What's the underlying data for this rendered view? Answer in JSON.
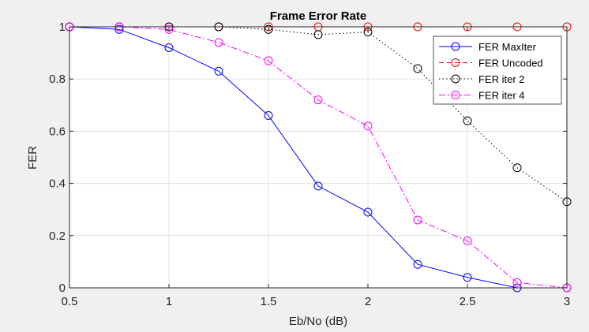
{
  "chart_data": {
    "type": "line",
    "title": "Frame Error Rate",
    "xlabel": "Eb/No (dB)",
    "ylabel": "FER",
    "xlim": [
      0.5,
      3
    ],
    "ylim": [
      0,
      1
    ],
    "xticks": [
      0.5,
      1,
      1.5,
      2,
      2.5,
      3
    ],
    "xtick_labels": [
      "0.5",
      "1",
      "1.5",
      "2",
      "2.5",
      "3"
    ],
    "yticks": [
      0,
      0.2,
      0.4,
      0.6,
      0.8,
      1
    ],
    "ytick_labels": [
      "0",
      "0.2",
      "0.4",
      "0.6",
      "0.8",
      "1"
    ],
    "grid": true,
    "legend_position": "top-right",
    "x": [
      0.5,
      0.75,
      1,
      1.25,
      1.5,
      1.75,
      2,
      2.25,
      2.5,
      2.75,
      3
    ],
    "series": [
      {
        "name": "FER MaxIter",
        "color": "#0000ff",
        "dash": "solid",
        "values": [
          1,
          0.99,
          0.92,
          0.83,
          0.66,
          0.39,
          0.29,
          0.09,
          0.04,
          0,
          0
        ]
      },
      {
        "name": "FER Uncoded",
        "color": "#ff0000",
        "dash": "dashed",
        "values": [
          1,
          1,
          1,
          1,
          1,
          1,
          1,
          1,
          1,
          1,
          1
        ]
      },
      {
        "name": "FER iter 2",
        "color": "#000000",
        "dash": "dotted",
        "values": [
          1,
          1,
          1,
          1,
          0.99,
          0.97,
          0.98,
          0.84,
          0.64,
          0.46,
          0.33
        ]
      },
      {
        "name": "FER iter 4",
        "color": "#ff00ff",
        "dash": "dashdot",
        "values": [
          1,
          1,
          0.99,
          0.94,
          0.87,
          0.72,
          0.62,
          0.26,
          0.18,
          0.02,
          0
        ]
      }
    ]
  }
}
